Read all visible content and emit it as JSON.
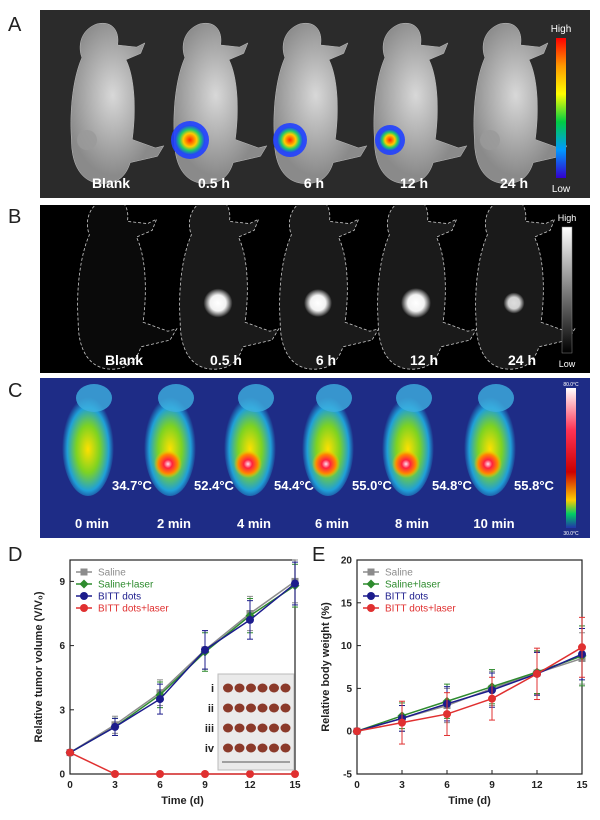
{
  "panels": {
    "a": {
      "label": "A",
      "timepoints": [
        "Blank",
        "0.5 h",
        "6 h",
        "12 h",
        "24 h"
      ],
      "scale": {
        "high": "High",
        "low": "Low"
      },
      "signal": [
        0,
        1.0,
        0.75,
        0.5,
        0.05
      ]
    },
    "b": {
      "label": "B",
      "timepoints": [
        "Blank",
        "0.5 h",
        "6 h",
        "12 h",
        "24 h"
      ],
      "scale": {
        "high": "High",
        "low": "Low"
      },
      "signal": [
        0,
        0.85,
        0.8,
        0.9,
        0.45
      ]
    },
    "c": {
      "label": "C",
      "temps": [
        "34.7°C",
        "52.4°C",
        "54.4°C",
        "55.0°C",
        "54.8°C",
        "55.8°C"
      ],
      "times": [
        "0 min",
        "2 min",
        "4 min",
        "6 min",
        "8 min",
        "10 min"
      ],
      "scale": {
        "high": "80.0°C",
        "low": "30.0°C"
      }
    },
    "d": {
      "label": "D"
    },
    "e": {
      "label": "E"
    }
  },
  "chart_data": [
    {
      "type": "line",
      "xlabel": "Time (d)",
      "ylabel": "Relative tumor volume (V/V₀)",
      "x": [
        0,
        3,
        6,
        9,
        12,
        15
      ],
      "xlim": [
        0,
        15
      ],
      "ylim": [
        0,
        10
      ],
      "xticks": [
        0,
        3,
        6,
        9,
        12,
        15
      ],
      "yticks": [
        0,
        3,
        6,
        9
      ],
      "legend_position": "top-left",
      "inset_labels": [
        "i",
        "ii",
        "iii",
        "iv"
      ],
      "series": [
        {
          "name": "Saline",
          "color": "#8c8c8c",
          "marker": "square",
          "values": [
            1,
            2.3,
            3.8,
            5.8,
            7.5,
            9.0
          ],
          "errors": [
            0,
            0.4,
            0.6,
            0.9,
            0.8,
            1.0
          ]
        },
        {
          "name": "Saline+laser",
          "color": "#2e8b2e",
          "marker": "diamond",
          "values": [
            1,
            2.2,
            3.7,
            5.7,
            7.4,
            8.8
          ],
          "errors": [
            0,
            0.4,
            0.6,
            0.9,
            0.8,
            1.0
          ]
        },
        {
          "name": "BITT dots",
          "color": "#1c1c8c",
          "marker": "circle",
          "values": [
            1,
            2.2,
            3.5,
            5.8,
            7.2,
            8.9
          ],
          "errors": [
            0,
            0.4,
            0.7,
            0.9,
            0.9,
            1.0
          ]
        },
        {
          "name": "BITT dots+laser",
          "color": "#e03030",
          "marker": "circle",
          "values": [
            1,
            0,
            0,
            0,
            0,
            0
          ],
          "errors": [
            0,
            0,
            0,
            0,
            0,
            0
          ]
        }
      ]
    },
    {
      "type": "line",
      "xlabel": "Time (d)",
      "ylabel": "Relative body weight (%)",
      "x": [
        0,
        3,
        6,
        9,
        12,
        15
      ],
      "xlim": [
        0,
        15
      ],
      "ylim": [
        -5,
        20
      ],
      "xticks": [
        0,
        3,
        6,
        9,
        12,
        15
      ],
      "yticks": [
        -5,
        0,
        5,
        10,
        15,
        20
      ],
      "legend_position": "top-left",
      "series": [
        {
          "name": "Saline",
          "color": "#8c8c8c",
          "marker": "square",
          "values": [
            0,
            1.5,
            3.0,
            5.0,
            6.8,
            8.5
          ],
          "errors": [
            0,
            1.5,
            2.0,
            2.0,
            2.5,
            3.0
          ]
        },
        {
          "name": "Saline+laser",
          "color": "#2e8b2e",
          "marker": "diamond",
          "values": [
            0,
            1.8,
            3.5,
            5.2,
            6.9,
            8.8
          ],
          "errors": [
            0,
            1.5,
            2.0,
            2.0,
            2.5,
            3.5
          ]
        },
        {
          "name": "BITT dots",
          "color": "#1c1c8c",
          "marker": "circle",
          "values": [
            0,
            1.5,
            3.2,
            4.8,
            6.7,
            9.0
          ],
          "errors": [
            0,
            1.5,
            2.0,
            2.0,
            2.5,
            3.0
          ]
        },
        {
          "name": "BITT dots+laser",
          "color": "#e03030",
          "marker": "circle",
          "values": [
            0,
            1.0,
            2.0,
            3.8,
            6.7,
            9.8
          ],
          "errors": [
            0,
            2.5,
            2.5,
            2.5,
            3.0,
            3.5
          ]
        }
      ]
    }
  ]
}
